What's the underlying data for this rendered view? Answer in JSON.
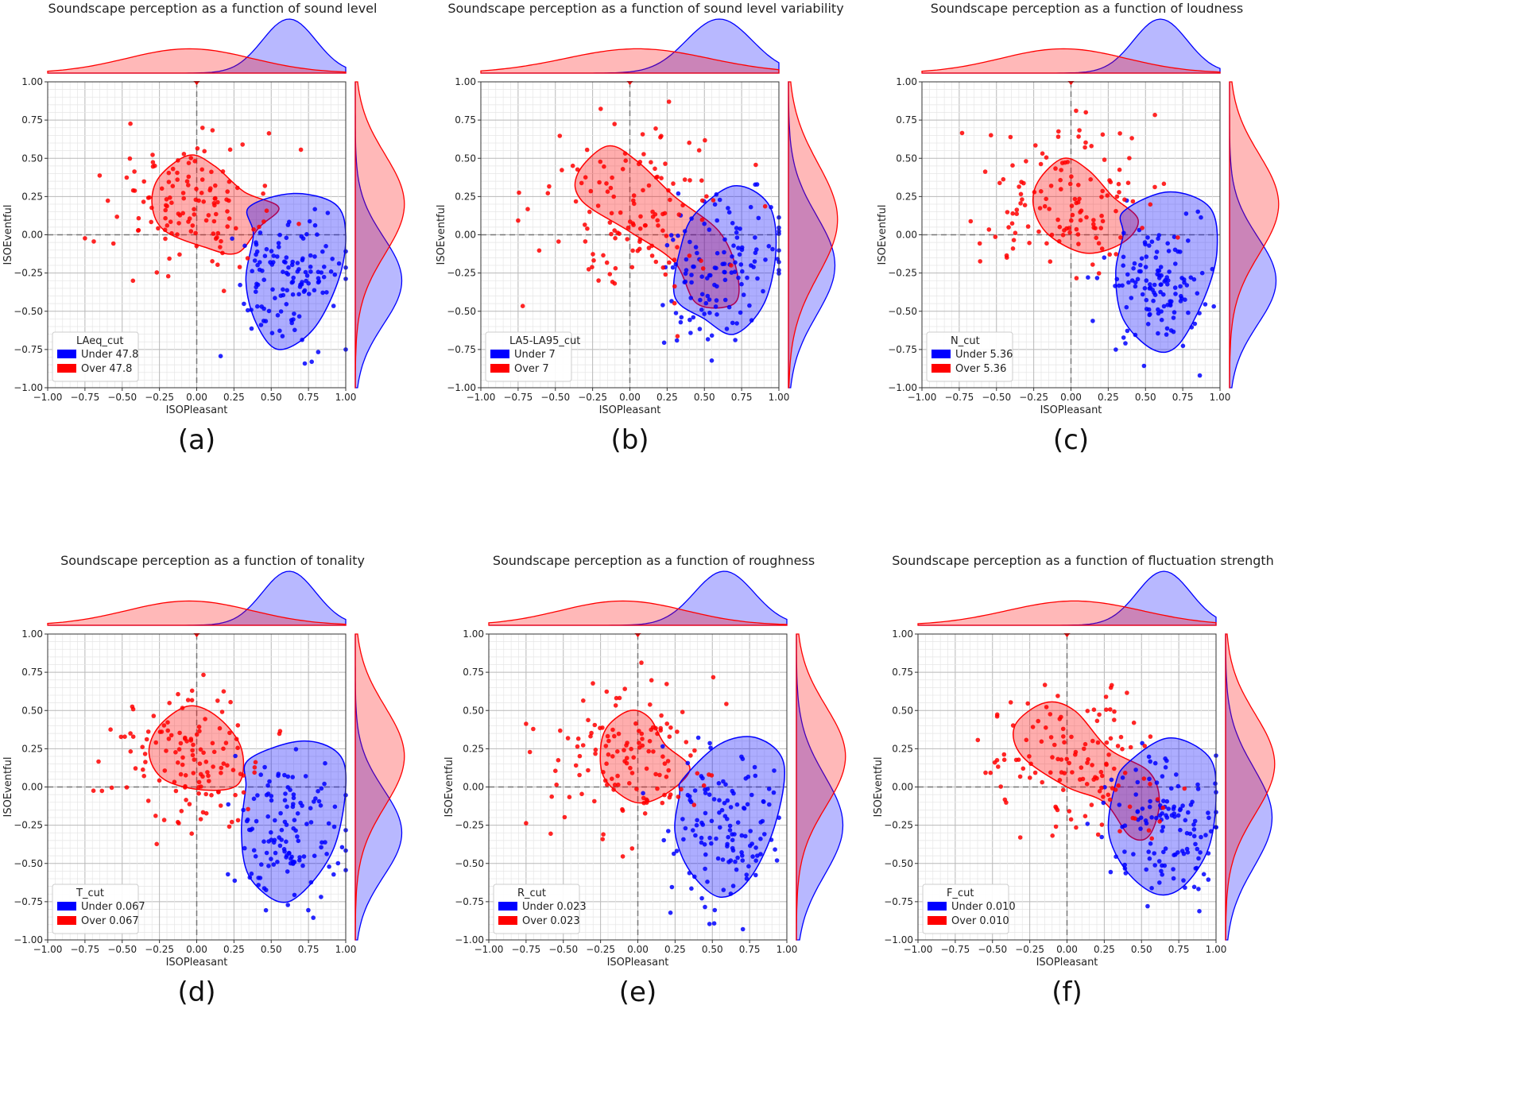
{
  "chart_data": [
    {
      "type": "scatter",
      "caption": "(a)",
      "title": "Soundscape perception as a function of sound level",
      "xlabel": "ISOPleasant",
      "ylabel": "ISOEventful",
      "xlim": [
        -1.0,
        1.0
      ],
      "ylim": [
        -1.0,
        1.0
      ],
      "xticks": [
        "−1.00",
        "−0.75",
        "−0.50",
        "−0.25",
        "0.00",
        "0.25",
        "0.50",
        "0.75",
        "1.00"
      ],
      "yticks": [
        "−1.00",
        "−0.75",
        "−0.50",
        "−0.25",
        "0.00",
        "0.25",
        "0.50",
        "0.75",
        "1.00"
      ],
      "grid": true,
      "legend_position": "lower-left",
      "legend_title": "LAeq_cut",
      "series": [
        {
          "name": "Under 47.8",
          "color": "#0000ff",
          "center": [
            0.62,
            -0.3
          ],
          "spread": [
            0.18,
            0.22
          ]
        },
        {
          "name": "Over 47.8",
          "color": "#ff0000",
          "center": [
            -0.05,
            0.2
          ],
          "spread": [
            0.28,
            0.25
          ]
        }
      ],
      "regions": [
        {
          "series": "Over 47.8",
          "points": [
            [
              -0.25,
              0.38
            ],
            [
              -0.05,
              0.52
            ],
            [
              0.12,
              0.45
            ],
            [
              0.32,
              0.28
            ],
            [
              0.55,
              0.18
            ],
            [
              0.42,
              0.05
            ],
            [
              0.27,
              -0.12
            ],
            [
              0.05,
              -0.08
            ],
            [
              -0.22,
              0.03
            ],
            [
              -0.3,
              0.2
            ]
          ]
        },
        {
          "series": "Under 47.8",
          "points": [
            [
              0.35,
              0.18
            ],
            [
              0.65,
              0.27
            ],
            [
              0.93,
              0.2
            ],
            [
              1.0,
              0.0
            ],
            [
              0.95,
              -0.3
            ],
            [
              0.78,
              -0.62
            ],
            [
              0.55,
              -0.75
            ],
            [
              0.4,
              -0.58
            ],
            [
              0.33,
              -0.3
            ],
            [
              0.38,
              0.0
            ]
          ]
        }
      ]
    },
    {
      "type": "scatter",
      "caption": "(b)",
      "title": "Soundscape perception as a function of sound level variability",
      "xlabel": "ISOPleasant",
      "ylabel": "ISOEventful",
      "xlim": [
        -1.0,
        1.0
      ],
      "ylim": [
        -1.0,
        1.0
      ],
      "xticks": [
        "−1.00",
        "−0.75",
        "−0.50",
        "−0.25",
        "0.00",
        "0.25",
        "0.50",
        "0.75",
        "1.00"
      ],
      "yticks": [
        "−1.00",
        "−0.75",
        "−0.50",
        "−0.25",
        "0.00",
        "0.25",
        "0.50",
        "0.75",
        "1.00"
      ],
      "grid": true,
      "legend_position": "lower-left",
      "legend_title": "LA5-LA95_cut",
      "series": [
        {
          "name": "Under 7",
          "color": "#0000ff",
          "center": [
            0.6,
            -0.2
          ],
          "spread": [
            0.22,
            0.25
          ]
        },
        {
          "name": "Over 7",
          "color": "#ff0000",
          "center": [
            0.05,
            0.1
          ],
          "spread": [
            0.32,
            0.28
          ]
        }
      ],
      "regions": [
        {
          "series": "Over 7",
          "points": [
            [
              -0.35,
              0.4
            ],
            [
              -0.15,
              0.58
            ],
            [
              0.05,
              0.48
            ],
            [
              0.3,
              0.25
            ],
            [
              0.6,
              0.02
            ],
            [
              0.72,
              -0.25
            ],
            [
              0.7,
              -0.45
            ],
            [
              0.45,
              -0.45
            ],
            [
              0.3,
              -0.18
            ],
            [
              0.0,
              0.02
            ],
            [
              -0.32,
              0.22
            ]
          ]
        },
        {
          "series": "Under 7",
          "points": [
            [
              0.45,
              0.15
            ],
            [
              0.7,
              0.32
            ],
            [
              0.93,
              0.2
            ],
            [
              0.98,
              -0.1
            ],
            [
              0.9,
              -0.45
            ],
            [
              0.7,
              -0.65
            ],
            [
              0.5,
              -0.55
            ],
            [
              0.3,
              -0.4
            ],
            [
              0.35,
              -0.05
            ]
          ]
        }
      ]
    },
    {
      "type": "scatter",
      "caption": "(c)",
      "title": "Soundscape perception as a function of loudness",
      "xlabel": "ISOPleasant",
      "ylabel": "ISOEventful",
      "xlim": [
        -1.0,
        1.0
      ],
      "ylim": [
        -1.0,
        1.0
      ],
      "xticks": [
        "−1.00",
        "−0.75",
        "−0.50",
        "−0.25",
        "0.00",
        "0.25",
        "0.50",
        "0.75",
        "1.00"
      ],
      "yticks": [
        "−1.00",
        "−0.75",
        "−0.50",
        "−0.25",
        "0.00",
        "0.25",
        "0.50",
        "0.75",
        "1.00"
      ],
      "grid": true,
      "legend_position": "lower-left",
      "legend_title": "N_cut",
      "series": [
        {
          "name": "Under 5.36",
          "color": "#0000ff",
          "center": [
            0.6,
            -0.3
          ],
          "spread": [
            0.18,
            0.22
          ]
        },
        {
          "name": "Over 5.36",
          "color": "#ff0000",
          "center": [
            -0.05,
            0.2
          ],
          "spread": [
            0.28,
            0.25
          ]
        }
      ],
      "regions": [
        {
          "series": "Over 5.36",
          "points": [
            [
              -0.22,
              0.35
            ],
            [
              -0.05,
              0.5
            ],
            [
              0.12,
              0.42
            ],
            [
              0.28,
              0.25
            ],
            [
              0.45,
              0.1
            ],
            [
              0.35,
              -0.05
            ],
            [
              0.1,
              -0.12
            ],
            [
              -0.15,
              0.0
            ],
            [
              -0.25,
              0.18
            ]
          ]
        },
        {
          "series": "Under 5.36",
          "points": [
            [
              0.35,
              0.15
            ],
            [
              0.65,
              0.28
            ],
            [
              0.93,
              0.18
            ],
            [
              0.98,
              -0.1
            ],
            [
              0.9,
              -0.4
            ],
            [
              0.72,
              -0.72
            ],
            [
              0.55,
              -0.75
            ],
            [
              0.35,
              -0.55
            ],
            [
              0.3,
              -0.25
            ],
            [
              0.35,
              0.0
            ]
          ]
        }
      ]
    },
    {
      "type": "scatter",
      "caption": "(d)",
      "title": "Soundscape perception as a function of tonality",
      "xlabel": "ISOPleasant",
      "ylabel": "ISOEventful",
      "xlim": [
        -1.0,
        1.0
      ],
      "ylim": [
        -1.0,
        1.0
      ],
      "xticks": [
        "−1.00",
        "−0.75",
        "−0.50",
        "−0.25",
        "0.00",
        "0.25",
        "0.50",
        "0.75",
        "1.00"
      ],
      "yticks": [
        "−1.00",
        "−0.75",
        "−0.50",
        "−0.25",
        "0.00",
        "0.25",
        "0.50",
        "0.75",
        "1.00"
      ],
      "grid": true,
      "legend_position": "lower-left",
      "legend_title": "T_cut",
      "series": [
        {
          "name": "Under 0.067",
          "color": "#0000ff",
          "center": [
            0.62,
            -0.3
          ],
          "spread": [
            0.18,
            0.22
          ]
        },
        {
          "name": "Over 0.067",
          "color": "#ff0000",
          "center": [
            -0.05,
            0.2
          ],
          "spread": [
            0.28,
            0.25
          ]
        }
      ],
      "regions": [
        {
          "series": "Over 0.067",
          "points": [
            [
              -0.25,
              0.4
            ],
            [
              -0.05,
              0.53
            ],
            [
              0.15,
              0.45
            ],
            [
              0.3,
              0.25
            ],
            [
              0.28,
              0.02
            ],
            [
              0.05,
              -0.02
            ],
            [
              -0.22,
              0.05
            ],
            [
              -0.32,
              0.22
            ]
          ]
        },
        {
          "series": "Under 0.067",
          "points": [
            [
              0.35,
              0.18
            ],
            [
              0.7,
              0.3
            ],
            [
              0.95,
              0.22
            ],
            [
              1.0,
              0.0
            ],
            [
              0.92,
              -0.4
            ],
            [
              0.72,
              -0.68
            ],
            [
              0.55,
              -0.75
            ],
            [
              0.35,
              -0.58
            ],
            [
              0.3,
              -0.3
            ],
            [
              0.33,
              0.0
            ]
          ]
        }
      ]
    },
    {
      "type": "scatter",
      "caption": "(e)",
      "title": "Soundscape perception as a function of roughness",
      "xlabel": "ISOPleasant",
      "ylabel": "ISOEventful",
      "xlim": [
        -1.0,
        1.0
      ],
      "ylim": [
        -1.0,
        1.0
      ],
      "xticks": [
        "−1.00",
        "−0.75",
        "−0.50",
        "−0.25",
        "0.00",
        "0.25",
        "0.50",
        "0.75",
        "1.00"
      ],
      "yticks": [
        "−1.00",
        "−0.75",
        "−0.50",
        "−0.25",
        "0.00",
        "0.25",
        "0.50",
        "0.75",
        "1.00"
      ],
      "grid": true,
      "legend_position": "lower-left",
      "legend_title": "R_cut",
      "series": [
        {
          "name": "Under 0.023",
          "color": "#0000ff",
          "center": [
            0.58,
            -0.25
          ],
          "spread": [
            0.2,
            0.25
          ]
        },
        {
          "name": "Over 0.023",
          "color": "#ff0000",
          "center": [
            -0.1,
            0.2
          ],
          "spread": [
            0.28,
            0.25
          ]
        }
      ],
      "regions": [
        {
          "series": "Over 0.023",
          "points": [
            [
              -0.2,
              0.4
            ],
            [
              -0.05,
              0.5
            ],
            [
              0.08,
              0.45
            ],
            [
              0.18,
              0.28
            ],
            [
              0.35,
              0.12
            ],
            [
              0.18,
              -0.05
            ],
            [
              -0.02,
              -0.1
            ],
            [
              -0.22,
              0.05
            ],
            [
              -0.25,
              0.25
            ]
          ]
        },
        {
          "series": "Under 0.023",
          "points": [
            [
              0.3,
              0.05
            ],
            [
              0.55,
              0.28
            ],
            [
              0.8,
              0.32
            ],
            [
              0.98,
              0.15
            ],
            [
              0.92,
              -0.25
            ],
            [
              0.75,
              -0.6
            ],
            [
              0.55,
              -0.72
            ],
            [
              0.35,
              -0.55
            ],
            [
              0.25,
              -0.3
            ],
            [
              0.28,
              -0.05
            ]
          ]
        }
      ]
    },
    {
      "type": "scatter",
      "caption": "(f)",
      "title": "Soundscape perception as a function of fluctuation strength",
      "xlabel": "ISOPleasant",
      "ylabel": "ISOEventful",
      "xlim": [
        -1.0,
        1.0
      ],
      "ylim": [
        -1.0,
        1.0
      ],
      "xticks": [
        "−1.00",
        "−0.75",
        "−0.50",
        "−0.25",
        "0.00",
        "0.25",
        "0.50",
        "0.75",
        "1.00"
      ],
      "yticks": [
        "−1.00",
        "−0.75",
        "−0.50",
        "−0.25",
        "0.00",
        "0.25",
        "0.50",
        "0.75",
        "1.00"
      ],
      "grid": true,
      "legend_position": "lower-left",
      "legend_title": "F_cut",
      "series": [
        {
          "name": "Under 0.010",
          "color": "#0000ff",
          "center": [
            0.65,
            -0.2
          ],
          "spread": [
            0.18,
            0.25
          ]
        },
        {
          "name": "Over 0.010",
          "color": "#ff0000",
          "center": [
            0.05,
            0.15
          ],
          "spread": [
            0.3,
            0.25
          ]
        }
      ],
      "regions": [
        {
          "series": "Over 0.010",
          "points": [
            [
              -0.35,
              0.4
            ],
            [
              -0.15,
              0.55
            ],
            [
              0.05,
              0.5
            ],
            [
              0.28,
              0.25
            ],
            [
              0.55,
              0.1
            ],
            [
              0.62,
              -0.1
            ],
            [
              0.55,
              -0.32
            ],
            [
              0.42,
              -0.32
            ],
            [
              0.25,
              -0.1
            ],
            [
              0.0,
              0.0
            ],
            [
              -0.3,
              0.2
            ]
          ]
        },
        {
          "series": "Under 0.010",
          "points": [
            [
              0.4,
              0.15
            ],
            [
              0.68,
              0.32
            ],
            [
              0.95,
              0.2
            ],
            [
              1.0,
              -0.05
            ],
            [
              0.95,
              -0.4
            ],
            [
              0.78,
              -0.65
            ],
            [
              0.6,
              -0.7
            ],
            [
              0.4,
              -0.55
            ],
            [
              0.28,
              -0.3
            ],
            [
              0.32,
              0.0
            ]
          ]
        }
      ]
    }
  ]
}
